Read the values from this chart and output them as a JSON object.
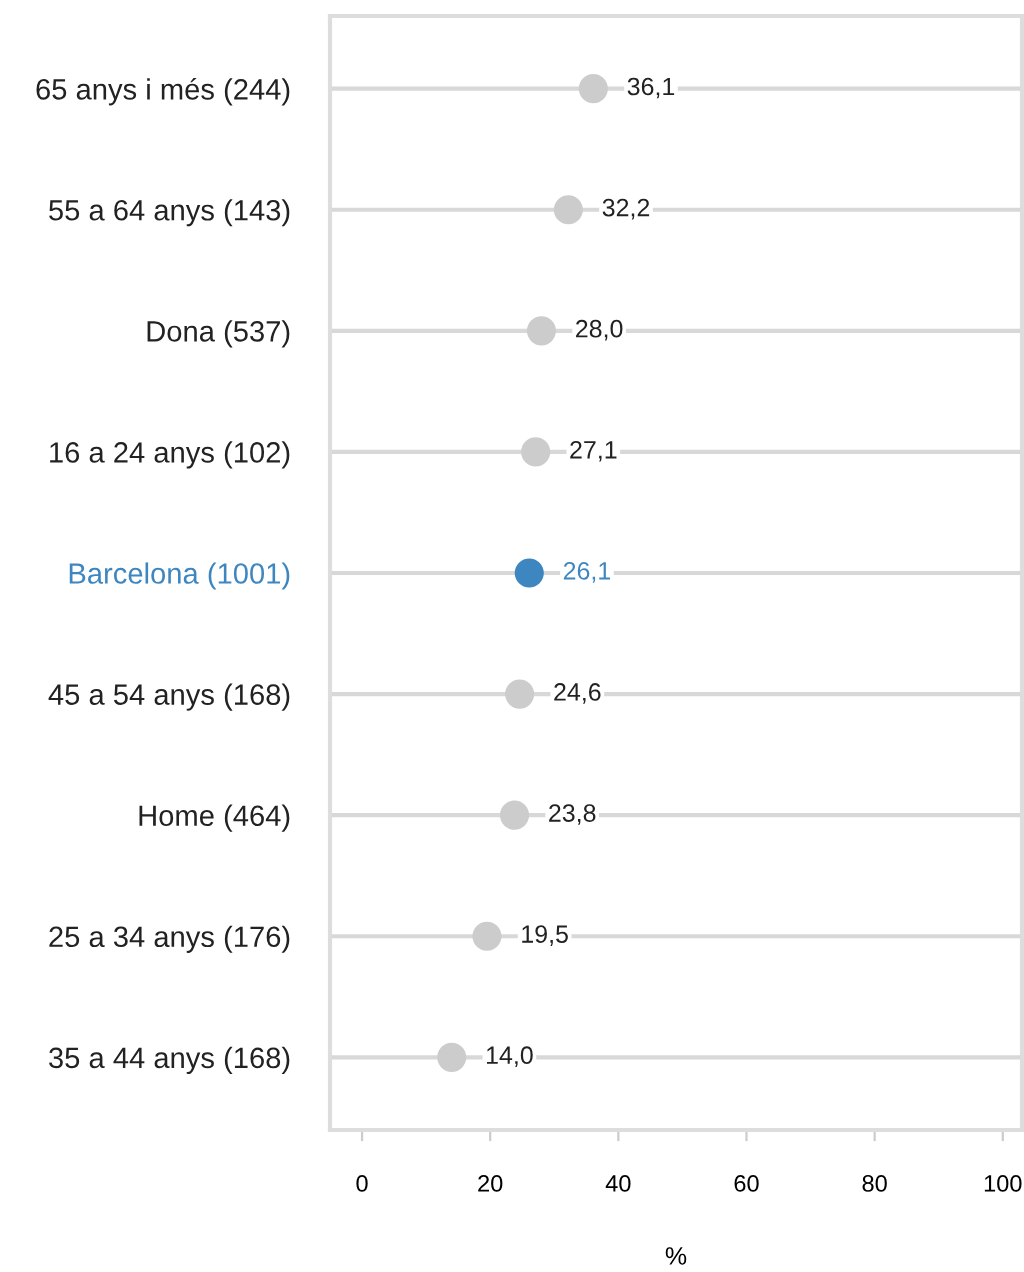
{
  "chart_data": {
    "type": "scatter",
    "orientation": "horizontal",
    "xlabel": "%",
    "categories": [
      "65 anys i més (244)",
      "55 a 64 anys (143)",
      "Dona (537)",
      "16 a 24 anys (102)",
      "Barcelona (1001)",
      "45 a 54 anys (168)",
      "Home (464)",
      "25 a 34 anys (176)",
      "35 a 44 anys (168)"
    ],
    "values": [
      36.1,
      32.2,
      28.0,
      27.1,
      26.1,
      24.6,
      23.8,
      19.5,
      14.0
    ],
    "value_labels": [
      "36,1",
      "32,2",
      "28,0",
      "27,1",
      "26,1",
      "24,6",
      "23,8",
      "19,5",
      "14,0"
    ],
    "color": "#cccccc",
    "colors": [
      "#cccccc",
      "#cccccc",
      "#cccccc",
      "#cccccc",
      "#3d86c0",
      "#cccccc",
      "#cccccc",
      "#cccccc",
      "#cccccc"
    ],
    "xlim": [
      -5,
      103
    ],
    "xticks": [
      0,
      20,
      40,
      60,
      80,
      100
    ],
    "grid": "y",
    "marker": "circle"
  }
}
